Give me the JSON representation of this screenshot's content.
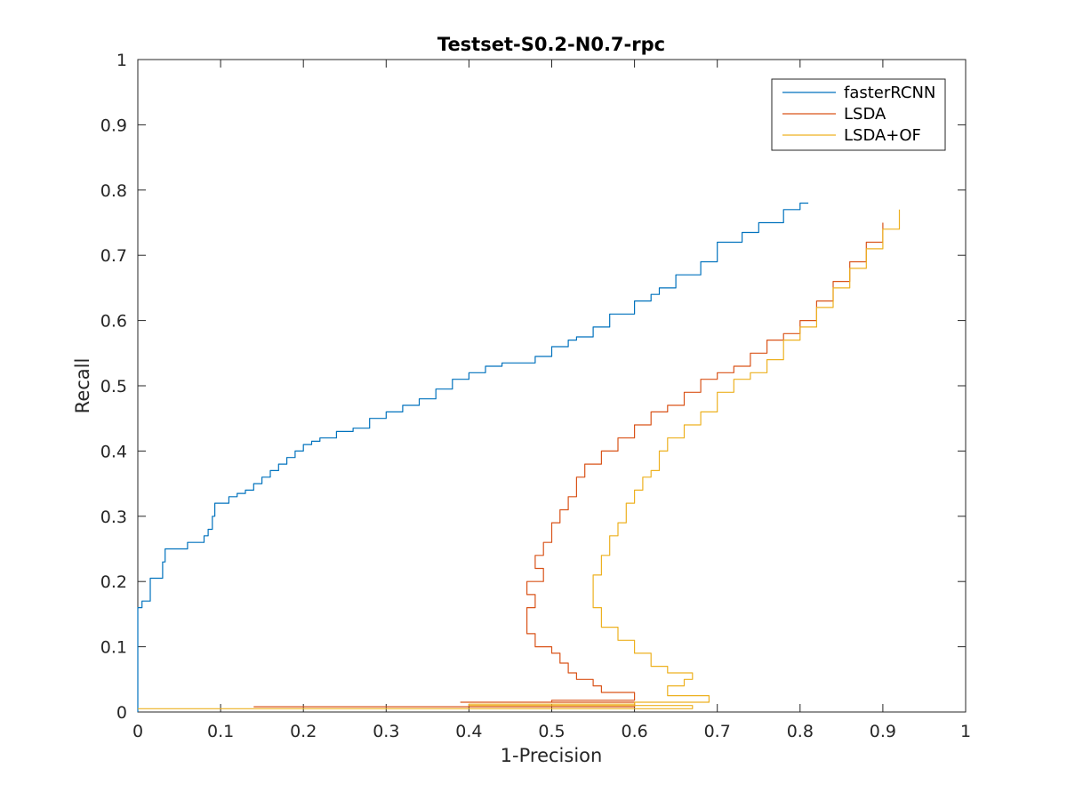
{
  "chart_data": {
    "type": "line",
    "title": "Testset-S0.2-N0.7-rpc",
    "xlabel": "1-Precision",
    "ylabel": "Recall",
    "xlim": [
      0,
      1
    ],
    "ylim": [
      0,
      1
    ],
    "xticks": [
      "0",
      "0.1",
      "0.2",
      "0.3",
      "0.4",
      "0.5",
      "0.6",
      "0.7",
      "0.8",
      "0.9",
      "1"
    ],
    "yticks": [
      "0",
      "0.1",
      "0.2",
      "0.3",
      "0.4",
      "0.5",
      "0.6",
      "0.7",
      "0.8",
      "0.9",
      "1"
    ],
    "grid": false,
    "legend_position": "top-right",
    "series": [
      {
        "name": "fasterRCNN",
        "color": "#0072BD",
        "x": [
          0.0,
          0.0,
          0.002,
          0.005,
          0.012,
          0.015,
          0.025,
          0.03,
          0.033,
          0.04,
          0.05,
          0.06,
          0.07,
          0.08,
          0.085,
          0.09,
          0.093,
          0.1,
          0.11,
          0.12,
          0.13,
          0.14,
          0.15,
          0.16,
          0.17,
          0.18,
          0.19,
          0.2,
          0.21,
          0.22,
          0.24,
          0.26,
          0.28,
          0.3,
          0.32,
          0.34,
          0.36,
          0.38,
          0.4,
          0.42,
          0.44,
          0.46,
          0.48,
          0.5,
          0.52,
          0.53,
          0.55,
          0.57,
          0.6,
          0.62,
          0.63,
          0.65,
          0.68,
          0.7,
          0.73,
          0.75,
          0.78,
          0.8,
          0.81
        ],
        "y": [
          0.0,
          0.16,
          0.16,
          0.17,
          0.17,
          0.205,
          0.205,
          0.23,
          0.25,
          0.25,
          0.25,
          0.26,
          0.26,
          0.27,
          0.28,
          0.3,
          0.32,
          0.32,
          0.33,
          0.335,
          0.34,
          0.35,
          0.36,
          0.37,
          0.38,
          0.39,
          0.4,
          0.41,
          0.415,
          0.42,
          0.43,
          0.435,
          0.45,
          0.46,
          0.47,
          0.48,
          0.495,
          0.51,
          0.52,
          0.53,
          0.535,
          0.535,
          0.545,
          0.56,
          0.57,
          0.575,
          0.59,
          0.61,
          0.63,
          0.64,
          0.65,
          0.67,
          0.69,
          0.72,
          0.735,
          0.75,
          0.77,
          0.78,
          0.78
        ]
      },
      {
        "name": "LSDA",
        "color": "#D95319",
        "x": [
          0.14,
          0.3,
          0.5,
          0.6,
          0.39,
          0.5,
          0.6,
          0.56,
          0.55,
          0.53,
          0.52,
          0.51,
          0.5,
          0.48,
          0.47,
          0.47,
          0.48,
          0.47,
          0.49,
          0.48,
          0.49,
          0.5,
          0.51,
          0.52,
          0.53,
          0.54,
          0.56,
          0.58,
          0.6,
          0.62,
          0.64,
          0.66,
          0.68,
          0.7,
          0.72,
          0.74,
          0.76,
          0.78,
          0.8,
          0.82,
          0.84,
          0.86,
          0.88,
          0.9
        ],
        "y": [
          0.008,
          0.008,
          0.008,
          0.015,
          0.015,
          0.018,
          0.03,
          0.04,
          0.05,
          0.06,
          0.075,
          0.09,
          0.1,
          0.12,
          0.14,
          0.16,
          0.18,
          0.2,
          0.22,
          0.24,
          0.26,
          0.29,
          0.31,
          0.33,
          0.36,
          0.38,
          0.4,
          0.42,
          0.44,
          0.46,
          0.47,
          0.49,
          0.51,
          0.52,
          0.53,
          0.55,
          0.57,
          0.58,
          0.6,
          0.63,
          0.66,
          0.69,
          0.72,
          0.75
        ]
      },
      {
        "name": "LSDA+OF",
        "color": "#EDB120",
        "x": [
          0.0,
          0.3,
          0.5,
          0.67,
          0.4,
          0.6,
          0.69,
          0.64,
          0.66,
          0.67,
          0.64,
          0.62,
          0.6,
          0.58,
          0.56,
          0.55,
          0.55,
          0.56,
          0.56,
          0.57,
          0.58,
          0.59,
          0.6,
          0.61,
          0.62,
          0.63,
          0.63,
          0.64,
          0.66,
          0.68,
          0.7,
          0.72,
          0.74,
          0.76,
          0.78,
          0.8,
          0.82,
          0.84,
          0.86,
          0.88,
          0.9,
          0.92
        ],
        "y": [
          0.005,
          0.005,
          0.005,
          0.01,
          0.012,
          0.015,
          0.025,
          0.04,
          0.05,
          0.06,
          0.07,
          0.09,
          0.11,
          0.13,
          0.16,
          0.19,
          0.21,
          0.23,
          0.24,
          0.27,
          0.29,
          0.32,
          0.34,
          0.36,
          0.37,
          0.38,
          0.4,
          0.42,
          0.44,
          0.46,
          0.49,
          0.51,
          0.52,
          0.54,
          0.57,
          0.59,
          0.62,
          0.65,
          0.68,
          0.71,
          0.74,
          0.77
        ]
      }
    ]
  }
}
